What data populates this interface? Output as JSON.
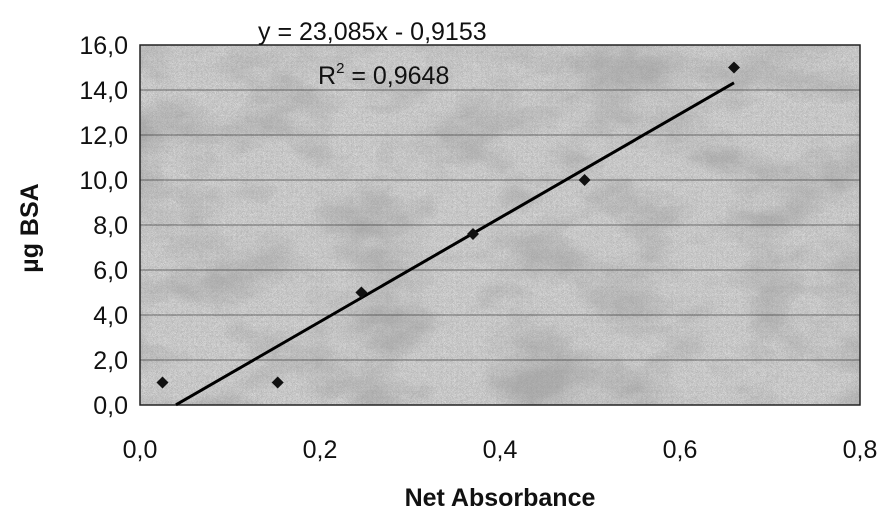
{
  "chart_data": {
    "type": "scatter",
    "title": "",
    "xlabel": "Net Absorbance",
    "ylabel": "µg BSA",
    "xlim": [
      0,
      0.8
    ],
    "ylim": [
      0,
      16
    ],
    "x_ticks": [
      "0,0",
      "0,2",
      "0,4",
      "0,6",
      "0,8"
    ],
    "y_ticks": [
      "0,0",
      "2,0",
      "4,0",
      "6,0",
      "8,0",
      "10,0",
      "12,0",
      "14,0",
      "16,0"
    ],
    "x_tick_values": [
      0,
      0.2,
      0.4,
      0.6,
      0.8
    ],
    "y_tick_values": [
      0,
      2,
      4,
      6,
      8,
      10,
      12,
      14,
      16
    ],
    "grid": true,
    "series": [
      {
        "x": [
          0.025,
          0.153,
          0.246,
          0.37,
          0.494,
          0.66
        ],
        "y": [
          1.0,
          1.0,
          5.0,
          7.6,
          10.0,
          15.0
        ]
      }
    ],
    "trendline": {
      "slope": 23.085,
      "intercept": -0.9153,
      "x_range": [
        0.04,
        0.66
      ]
    },
    "annotations": {
      "equation": "y = 23,085x - 0,9153",
      "r2_prefix": "R",
      "r2_sup": "2",
      "r2_value": " = 0,9648"
    },
    "colors": {
      "background_texture": "#8a8a8a",
      "marks": "#111111"
    }
  }
}
